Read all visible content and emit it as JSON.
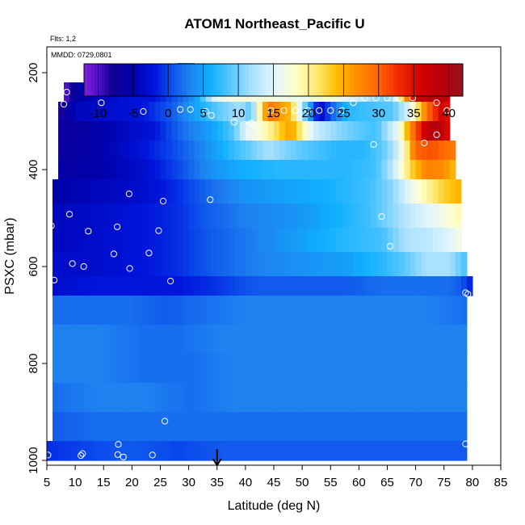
{
  "chart_data": {
    "type": "heatmap",
    "title": "ATOM1 Northeast_Pacific U",
    "flights_note": "Flts: 1,2",
    "date_note": "MMDD: 0729,0801",
    "xlabel": "Latitude (deg N)",
    "ylabel": "PSXC (mbar)",
    "xlim": [
      5,
      85
    ],
    "ylim": [
      1000,
      50
    ],
    "x_ticks": [
      "5",
      "10",
      "15",
      "20",
      "25",
      "30",
      "35",
      "40",
      "45",
      "50",
      "55",
      "60",
      "65",
      "70",
      "75",
      "80",
      "85"
    ],
    "y_ticks": [
      "200",
      "400",
      "600",
      "800",
      "1000"
    ],
    "colorbar": {
      "range": [
        -12,
        42
      ],
      "ticks": [
        "-10",
        "-5",
        "0",
        "5",
        "10",
        "15",
        "20",
        "25",
        "30",
        "35",
        "40"
      ]
    },
    "arrow_marker_latitude": 35,
    "levels": [
      {
        "p0": 180,
        "p1": 220,
        "lat_range": [
          28,
          31
        ],
        "anchors": [
          [
            28,
            3
          ],
          [
            31,
            6
          ]
        ]
      },
      {
        "p0": 220,
        "p1": 260,
        "lat_range": [
          8,
          76
        ],
        "anchors": [
          [
            8,
            -11
          ],
          [
            10,
            -6
          ],
          [
            14,
            -4
          ],
          [
            20,
            -2
          ],
          [
            24,
            -2
          ],
          [
            28,
            1
          ],
          [
            31,
            4
          ],
          [
            33,
            10
          ],
          [
            35,
            16
          ],
          [
            40,
            17
          ],
          [
            45,
            17
          ],
          [
            50,
            16
          ],
          [
            55,
            17
          ],
          [
            60,
            14
          ],
          [
            64,
            10
          ],
          [
            66,
            12
          ],
          [
            68,
            25
          ],
          [
            70,
            37
          ],
          [
            73,
            39
          ],
          [
            76,
            38
          ]
        ]
      },
      {
        "p0": 260,
        "p1": 300,
        "lat_range": [
          7,
          76
        ],
        "anchors": [
          [
            7,
            -9
          ],
          [
            10,
            -4
          ],
          [
            16,
            -3
          ],
          [
            22,
            -2
          ],
          [
            27,
            1
          ],
          [
            31,
            5
          ],
          [
            35,
            9
          ],
          [
            39,
            12
          ],
          [
            41,
            9
          ],
          [
            44,
            29
          ],
          [
            48,
            24
          ],
          [
            51,
            7
          ],
          [
            53,
            -4
          ],
          [
            56,
            3
          ],
          [
            58,
            7
          ],
          [
            62,
            8
          ],
          [
            66,
            9
          ],
          [
            69,
            15
          ],
          [
            72,
            29
          ],
          [
            75,
            37
          ],
          [
            76,
            33
          ]
        ]
      },
      {
        "p0": 300,
        "p1": 340,
        "lat_range": [
          7,
          76
        ],
        "anchors": [
          [
            7,
            -7
          ],
          [
            12,
            -6
          ],
          [
            18,
            -4
          ],
          [
            24,
            -2
          ],
          [
            29,
            2
          ],
          [
            34,
            5
          ],
          [
            38,
            9
          ],
          [
            40,
            15
          ],
          [
            43,
            18
          ],
          [
            48,
            26
          ],
          [
            52,
            14
          ],
          [
            56,
            11
          ],
          [
            60,
            9
          ],
          [
            63,
            8
          ],
          [
            65,
            12
          ],
          [
            67,
            16
          ],
          [
            69,
            27
          ],
          [
            72,
            38
          ],
          [
            74,
            40
          ],
          [
            76,
            34
          ]
        ]
      },
      {
        "p0": 340,
        "p1": 380,
        "lat_range": [
          7,
          77
        ],
        "anchors": [
          [
            7,
            -7
          ],
          [
            14,
            -5
          ],
          [
            20,
            -3
          ],
          [
            27,
            0
          ],
          [
            32,
            3
          ],
          [
            36,
            6
          ],
          [
            40,
            9
          ],
          [
            44,
            12
          ],
          [
            50,
            9
          ],
          [
            56,
            7
          ],
          [
            61,
            7
          ],
          [
            64,
            9
          ],
          [
            66,
            12
          ],
          [
            68,
            18
          ],
          [
            70,
            30
          ],
          [
            73,
            31
          ],
          [
            77,
            28
          ]
        ]
      },
      {
        "p0": 380,
        "p1": 420,
        "lat_range": [
          7,
          77
        ],
        "anchors": [
          [
            7,
            -6
          ],
          [
            15,
            -5
          ],
          [
            22,
            -3
          ],
          [
            28,
            0
          ],
          [
            34,
            4
          ],
          [
            40,
            6
          ],
          [
            46,
            7
          ],
          [
            52,
            7
          ],
          [
            58,
            7
          ],
          [
            63,
            8
          ],
          [
            66,
            13
          ],
          [
            69,
            22
          ],
          [
            72,
            28
          ],
          [
            75,
            27
          ],
          [
            77,
            24
          ]
        ]
      },
      {
        "p0": 420,
        "p1": 470,
        "lat_range": [
          6,
          78
        ],
        "anchors": [
          [
            6,
            -5
          ],
          [
            14,
            -4
          ],
          [
            22,
            -3
          ],
          [
            28,
            -1
          ],
          [
            34,
            2
          ],
          [
            40,
            4
          ],
          [
            46,
            5
          ],
          [
            54,
            6
          ],
          [
            62,
            8
          ],
          [
            66,
            11
          ],
          [
            70,
            17
          ],
          [
            74,
            22
          ],
          [
            78,
            25
          ]
        ]
      },
      {
        "p0": 470,
        "p1": 520,
        "lat_range": [
          6,
          78
        ],
        "anchors": [
          [
            6,
            -4
          ],
          [
            15,
            -3
          ],
          [
            22,
            -2
          ],
          [
            28,
            -1
          ],
          [
            33,
            1
          ],
          [
            40,
            3
          ],
          [
            48,
            4
          ],
          [
            56,
            6
          ],
          [
            62,
            8
          ],
          [
            66,
            11
          ],
          [
            70,
            14
          ],
          [
            74,
            16
          ],
          [
            78,
            19
          ]
        ]
      },
      {
        "p0": 520,
        "p1": 570,
        "lat_range": [
          6,
          78
        ],
        "anchors": [
          [
            6,
            -4
          ],
          [
            14,
            -3
          ],
          [
            22,
            -2
          ],
          [
            28,
            -1
          ],
          [
            34,
            1
          ],
          [
            42,
            3
          ],
          [
            50,
            5
          ],
          [
            58,
            7
          ],
          [
            64,
            8
          ],
          [
            68,
            12
          ],
          [
            72,
            13
          ],
          [
            76,
            15
          ],
          [
            78,
            17
          ]
        ]
      },
      {
        "p0": 570,
        "p1": 620,
        "lat_range": [
          6,
          79
        ],
        "anchors": [
          [
            6,
            -3
          ],
          [
            14,
            -3
          ],
          [
            22,
            -2
          ],
          [
            28,
            -1
          ],
          [
            34,
            1
          ],
          [
            42,
            3
          ],
          [
            50,
            4
          ],
          [
            58,
            5
          ],
          [
            64,
            7
          ],
          [
            68,
            9
          ],
          [
            72,
            12
          ],
          [
            76,
            12
          ],
          [
            79,
            8
          ]
        ]
      },
      {
        "p0": 620,
        "p1": 660,
        "lat_range": [
          6,
          80
        ],
        "anchors": [
          [
            6,
            -3
          ],
          [
            14,
            -2
          ],
          [
            22,
            -2
          ],
          [
            28,
            -2
          ],
          [
            34,
            -1
          ],
          [
            42,
            1
          ],
          [
            50,
            1
          ],
          [
            58,
            1
          ],
          [
            64,
            2
          ],
          [
            70,
            2
          ],
          [
            76,
            2
          ],
          [
            78,
            1
          ],
          [
            80,
            -2
          ]
        ]
      },
      {
        "p0": 660,
        "p1": 720,
        "lat_range": [
          6,
          79
        ],
        "anchors": [
          [
            6,
            2
          ],
          [
            14,
            2
          ],
          [
            20,
            2
          ],
          [
            26,
            1
          ],
          [
            32,
            2
          ],
          [
            40,
            3
          ],
          [
            48,
            3
          ],
          [
            56,
            3
          ],
          [
            64,
            3
          ],
          [
            72,
            3
          ],
          [
            79,
            2
          ]
        ]
      },
      {
        "p0": 720,
        "p1": 780,
        "lat_range": [
          6,
          79
        ],
        "anchors": [
          [
            6,
            3
          ],
          [
            14,
            3
          ],
          [
            22,
            2
          ],
          [
            28,
            2
          ],
          [
            36,
            3
          ],
          [
            44,
            3
          ],
          [
            52,
            3
          ],
          [
            60,
            3
          ],
          [
            68,
            3
          ],
          [
            79,
            3
          ]
        ]
      },
      {
        "p0": 780,
        "p1": 840,
        "lat_range": [
          6,
          79
        ],
        "anchors": [
          [
            6,
            3
          ],
          [
            14,
            3
          ],
          [
            22,
            2
          ],
          [
            30,
            2
          ],
          [
            38,
            3
          ],
          [
            46,
            3
          ],
          [
            54,
            3
          ],
          [
            62,
            3
          ],
          [
            70,
            3
          ],
          [
            79,
            3
          ]
        ]
      },
      {
        "p0": 840,
        "p1": 900,
        "lat_range": [
          6,
          79
        ],
        "anchors": [
          [
            6,
            2
          ],
          [
            14,
            3
          ],
          [
            22,
            3
          ],
          [
            30,
            2
          ],
          [
            38,
            3
          ],
          [
            46,
            3
          ],
          [
            54,
            3
          ],
          [
            62,
            3
          ],
          [
            70,
            3
          ],
          [
            79,
            3
          ]
        ]
      },
      {
        "p0": 900,
        "p1": 960,
        "lat_range": [
          6,
          79
        ],
        "anchors": [
          [
            6,
            1
          ],
          [
            14,
            2
          ],
          [
            22,
            2
          ],
          [
            30,
            2
          ],
          [
            38,
            2
          ],
          [
            46,
            2
          ],
          [
            54,
            2
          ],
          [
            62,
            2
          ],
          [
            70,
            2
          ],
          [
            79,
            2
          ]
        ]
      },
      {
        "p0": 960,
        "p1": 1000,
        "lat_range": [
          5,
          79
        ],
        "anchors": [
          [
            5,
            -1
          ],
          [
            12,
            0
          ],
          [
            20,
            1
          ],
          [
            28,
            0
          ],
          [
            36,
            1
          ],
          [
            44,
            1
          ],
          [
            52,
            1
          ],
          [
            60,
            1
          ],
          [
            68,
            1
          ],
          [
            79,
            1
          ]
        ]
      }
    ],
    "sample_points": [
      [
        27.8,
        200
      ],
      [
        30.7,
        198
      ],
      [
        8.5,
        240
      ],
      [
        14.8,
        240
      ],
      [
        21.6,
        220
      ],
      [
        67.5,
        218
      ],
      [
        61.0,
        252
      ],
      [
        63.0,
        252
      ],
      [
        65.0,
        252
      ],
      [
        67.0,
        252
      ],
      [
        69.5,
        252
      ],
      [
        8.0,
        265
      ],
      [
        14.6,
        262
      ],
      [
        22.0,
        280
      ],
      [
        28.5,
        276
      ],
      [
        30.3,
        276
      ],
      [
        33.0,
        280
      ],
      [
        34.0,
        288
      ],
      [
        38.0,
        302
      ],
      [
        41.0,
        304
      ],
      [
        44.5,
        278
      ],
      [
        46.8,
        278
      ],
      [
        48.8,
        278
      ],
      [
        51.0,
        278
      ],
      [
        53.0,
        278
      ],
      [
        55.0,
        278
      ],
      [
        57.0,
        278
      ],
      [
        59.0,
        262
      ],
      [
        73.7,
        262
      ],
      [
        75.5,
        278
      ],
      [
        62.6,
        348
      ],
      [
        71.5,
        345
      ],
      [
        73.7,
        328
      ],
      [
        19.5,
        450
      ],
      [
        25.5,
        465
      ],
      [
        33.8,
        462
      ],
      [
        9.0,
        492
      ],
      [
        64.0,
        497
      ],
      [
        5.8,
        516
      ],
      [
        12.3,
        527
      ],
      [
        17.4,
        518
      ],
      [
        24.7,
        526
      ],
      [
        77.6,
        517
      ],
      [
        9.5,
        594
      ],
      [
        11.5,
        600
      ],
      [
        16.8,
        574
      ],
      [
        23.0,
        572
      ],
      [
        19.6,
        604
      ],
      [
        65.5,
        558
      ],
      [
        6.3,
        628
      ],
      [
        26.8,
        630
      ],
      [
        78.8,
        654
      ],
      [
        79.2,
        657
      ],
      [
        25.8,
        919
      ],
      [
        5.2,
        989
      ],
      [
        11.0,
        990
      ],
      [
        11.3,
        986
      ],
      [
        17.6,
        967
      ],
      [
        17.5,
        988
      ],
      [
        18.5,
        993
      ],
      [
        23.6,
        989
      ],
      [
        78.8,
        966
      ]
    ]
  }
}
